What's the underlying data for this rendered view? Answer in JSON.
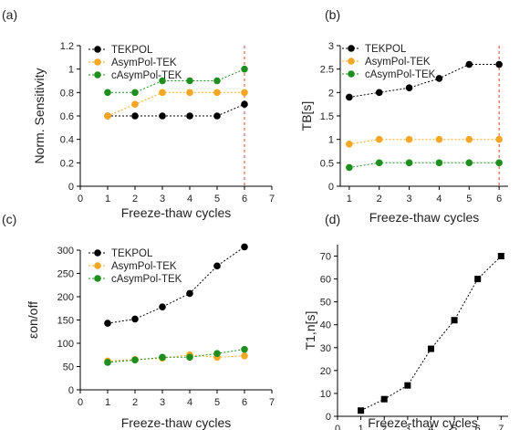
{
  "chart_data": [
    {
      "type": "line",
      "panel_label": "(a)",
      "xlabel": "Freeze-thaw cycles",
      "ylabel": "Norm. Sensitivity",
      "xlim": [
        0,
        7
      ],
      "ylim": [
        0,
        1.2
      ],
      "xticks": [
        "0",
        "1",
        "2",
        "3",
        "4",
        "5",
        "6",
        "7"
      ],
      "yticks": [
        "0",
        "0.2",
        "0.4",
        "0.6",
        "0.8",
        "1",
        "1.2"
      ],
      "grid": false,
      "legend": "top-left",
      "vline_x": 6,
      "series": [
        {
          "name": "TEKPOL",
          "color": "#000000",
          "marker": "circle",
          "x": [
            1,
            2,
            3,
            4,
            5,
            6
          ],
          "y": [
            0.6,
            0.6,
            0.6,
            0.6,
            0.6,
            0.7
          ]
        },
        {
          "name": "AsymPol-TEK",
          "color": "#f5a623",
          "marker": "circle",
          "x": [
            1,
            2,
            3,
            4,
            5,
            6
          ],
          "y": [
            0.6,
            0.7,
            0.8,
            0.8,
            0.8,
            0.8
          ]
        },
        {
          "name": "cAsymPol-TEK",
          "color": "#1e8f1e",
          "marker": "circle",
          "x": [
            1,
            2,
            3,
            4,
            5,
            6
          ],
          "y": [
            0.8,
            0.8,
            0.9,
            0.9,
            0.9,
            1.0
          ]
        }
      ]
    },
    {
      "type": "line",
      "panel_label": "(b)",
      "xlabel": "Freeze-thaw cycles",
      "ylabel": "TB[s]",
      "xlim": [
        0.7,
        6.3
      ],
      "ylim": [
        0,
        3
      ],
      "xticks": [
        "1",
        "2",
        "3",
        "4",
        "5",
        "6"
      ],
      "yticks": [
        "0",
        "0.5",
        "1",
        "1.5",
        "2",
        "2.5",
        "3"
      ],
      "grid": false,
      "legend": "top-left",
      "vline_x": 6,
      "series": [
        {
          "name": "TEKPOL",
          "color": "#000000",
          "marker": "circle",
          "x": [
            1,
            2,
            3,
            4,
            5,
            6
          ],
          "y": [
            1.9,
            2.0,
            2.1,
            2.3,
            2.6,
            2.6
          ]
        },
        {
          "name": "AsymPol-TEK",
          "color": "#f5a623",
          "marker": "circle",
          "x": [
            1,
            2,
            3,
            4,
            5,
            6
          ],
          "y": [
            0.9,
            1.0,
            1.0,
            1.0,
            1.0,
            1.0
          ]
        },
        {
          "name": "cAsymPol-TEK",
          "color": "#1e8f1e",
          "marker": "circle",
          "x": [
            1,
            2,
            3,
            4,
            5,
            6
          ],
          "y": [
            0.4,
            0.5,
            0.5,
            0.5,
            0.5,
            0.5
          ]
        }
      ]
    },
    {
      "type": "line",
      "panel_label": "(c)",
      "xlabel": "Freeze-thaw cycles",
      "ylabel": "εon/off",
      "xlim": [
        0,
        7
      ],
      "ylim": [
        0,
        300
      ],
      "xticks": [
        "0",
        "1",
        "2",
        "3",
        "4",
        "5",
        "6",
        "7"
      ],
      "yticks": [
        "0",
        "50",
        "100",
        "150",
        "200",
        "250",
        "300"
      ],
      "grid": false,
      "legend": "top-left",
      "series": [
        {
          "name": "TEKPOL",
          "color": "#000000",
          "marker": "circle",
          "x": [
            1,
            2,
            3,
            4,
            5,
            6
          ],
          "y": [
            143,
            152,
            178,
            207,
            266,
            307
          ]
        },
        {
          "name": "AsymPol-TEK",
          "color": "#f5a623",
          "marker": "circle",
          "x": [
            1,
            2,
            3,
            4,
            5,
            6
          ],
          "y": [
            62,
            65,
            68,
            75,
            70,
            73
          ]
        },
        {
          "name": "cAsymPol-TEK",
          "color": "#1e8f1e",
          "marker": "circle",
          "x": [
            1,
            2,
            3,
            4,
            5,
            6
          ],
          "y": [
            59,
            64,
            70,
            70,
            78,
            87
          ]
        }
      ]
    },
    {
      "type": "line",
      "panel_label": "(d)",
      "xlabel": "Freeze-thaw cycles",
      "ylabel": "T1,n[s]",
      "xlim": [
        0,
        7.3
      ],
      "ylim": [
        0,
        75
      ],
      "xticks": [
        "0",
        "1",
        "2",
        "3",
        "4",
        "5",
        "6",
        "7"
      ],
      "yticks": [
        "0",
        "10",
        "20",
        "30",
        "40",
        "50",
        "60",
        "70"
      ],
      "grid": false,
      "legend": "none",
      "series": [
        {
          "name": "",
          "color": "#000000",
          "marker": "square",
          "x": [
            1,
            2,
            3,
            4,
            5,
            6,
            7
          ],
          "y": [
            2.5,
            7.5,
            13.5,
            29.5,
            42,
            60,
            70
          ]
        }
      ]
    }
  ]
}
